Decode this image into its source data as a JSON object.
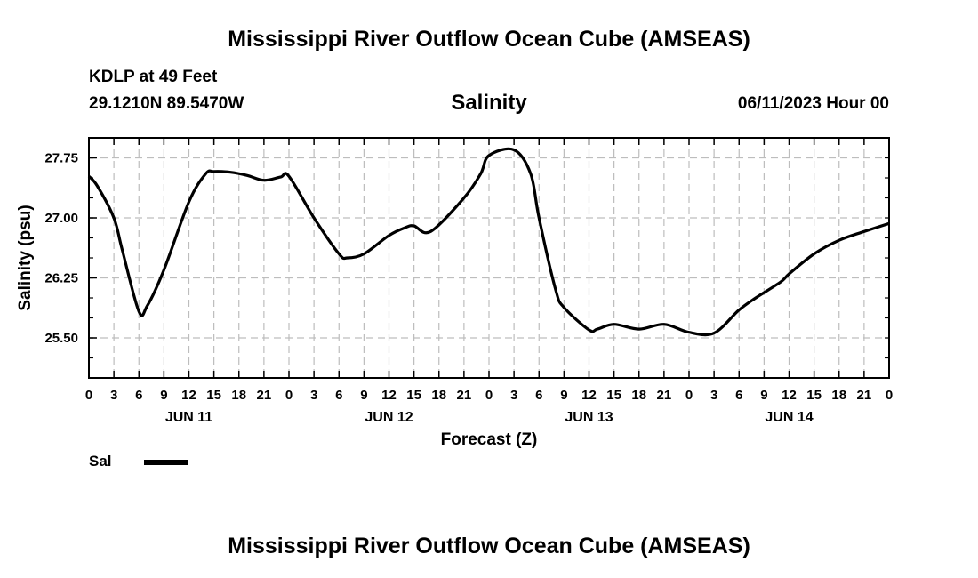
{
  "header": {
    "title": "Mississippi River Outflow Ocean Cube (AMSEAS)",
    "station": "KDLP at 49 Feet",
    "coords": "29.1210N  89.5470W",
    "variable": "Salinity",
    "datetime": "06/11/2023 Hour 00"
  },
  "footer": {
    "title": "Mississippi River Outflow Ocean Cube (AMSEAS)"
  },
  "legend": {
    "label": "Sal",
    "color": "#000000"
  },
  "chart_data": {
    "type": "line",
    "title": "Salinity",
    "xlabel": "Forecast (Z)",
    "ylabel": "Salinity (psu)",
    "xlim": [
      0,
      96
    ],
    "ylim": [
      25.0,
      28.0
    ],
    "yticks": [
      25.5,
      26.25,
      27.0,
      27.75
    ],
    "ytick_labels": [
      "25.50",
      "26.25",
      "27.00",
      "27.75"
    ],
    "xticks": [
      0,
      3,
      6,
      9,
      12,
      15,
      18,
      21,
      24,
      27,
      30,
      33,
      36,
      39,
      42,
      45,
      48,
      51,
      54,
      57,
      60,
      63,
      66,
      69,
      72,
      75,
      78,
      81,
      84,
      87,
      90,
      93,
      96
    ],
    "xtick_labels": [
      "0",
      "3",
      "6",
      "9",
      "12",
      "15",
      "18",
      "21",
      "0",
      "3",
      "6",
      "9",
      "12",
      "15",
      "18",
      "21",
      "0",
      "3",
      "6",
      "9",
      "12",
      "15",
      "18",
      "21",
      "0",
      "3",
      "6",
      "9",
      "12",
      "15",
      "18",
      "21",
      "0"
    ],
    "day_labels": [
      {
        "x": 12,
        "label": "JUN 11"
      },
      {
        "x": 36,
        "label": "JUN 12"
      },
      {
        "x": 60,
        "label": "JUN 13"
      },
      {
        "x": 84,
        "label": "JUN 14"
      }
    ],
    "grid": true,
    "series": [
      {
        "name": "Sal",
        "x": [
          0,
          1,
          3,
          4,
          6,
          7,
          9,
          12,
          14,
          15,
          17,
          19,
          21,
          23,
          24,
          27,
          30,
          31,
          33,
          36,
          38,
          39,
          41,
          45,
          47,
          48,
          51,
          53,
          54,
          56,
          57,
          60,
          61,
          63,
          66,
          69,
          72,
          75,
          78,
          80,
          83,
          84,
          87,
          90,
          93,
          96
        ],
        "y": [
          27.52,
          27.4,
          27.0,
          26.6,
          25.83,
          25.9,
          26.35,
          27.2,
          27.55,
          27.58,
          27.57,
          27.53,
          27.47,
          27.51,
          27.52,
          27.0,
          26.55,
          26.5,
          26.55,
          26.78,
          26.88,
          26.9,
          26.83,
          27.25,
          27.55,
          27.78,
          27.85,
          27.55,
          27.0,
          26.1,
          25.88,
          25.6,
          25.61,
          25.67,
          25.61,
          25.67,
          25.57,
          25.56,
          25.85,
          26.0,
          26.2,
          26.3,
          26.55,
          26.72,
          26.83,
          26.93
        ]
      }
    ]
  }
}
